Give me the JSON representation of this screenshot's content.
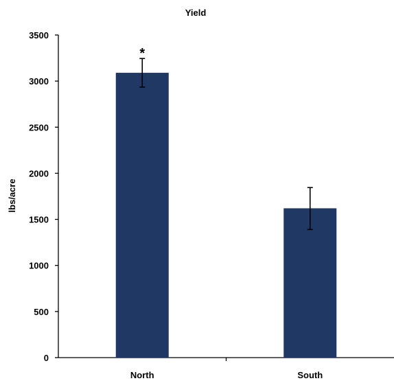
{
  "chart_data": {
    "type": "bar",
    "title": "Yield",
    "xlabel": "",
    "ylabel": "lbs/acre",
    "categories": [
      "North",
      "South"
    ],
    "values": [
      3090,
      1620
    ],
    "error_bars": [
      {
        "low": 2935,
        "high": 3245
      },
      {
        "low": 1390,
        "high": 1845
      }
    ],
    "annotations": [
      {
        "category": "North",
        "text": "*"
      }
    ],
    "ylim": [
      0,
      3500
    ],
    "yticks": [
      "0",
      "500",
      "1000",
      "1500",
      "2000",
      "2500",
      "3000",
      "3500"
    ],
    "grid": false,
    "legend": "none",
    "bar_color": "#203864"
  }
}
